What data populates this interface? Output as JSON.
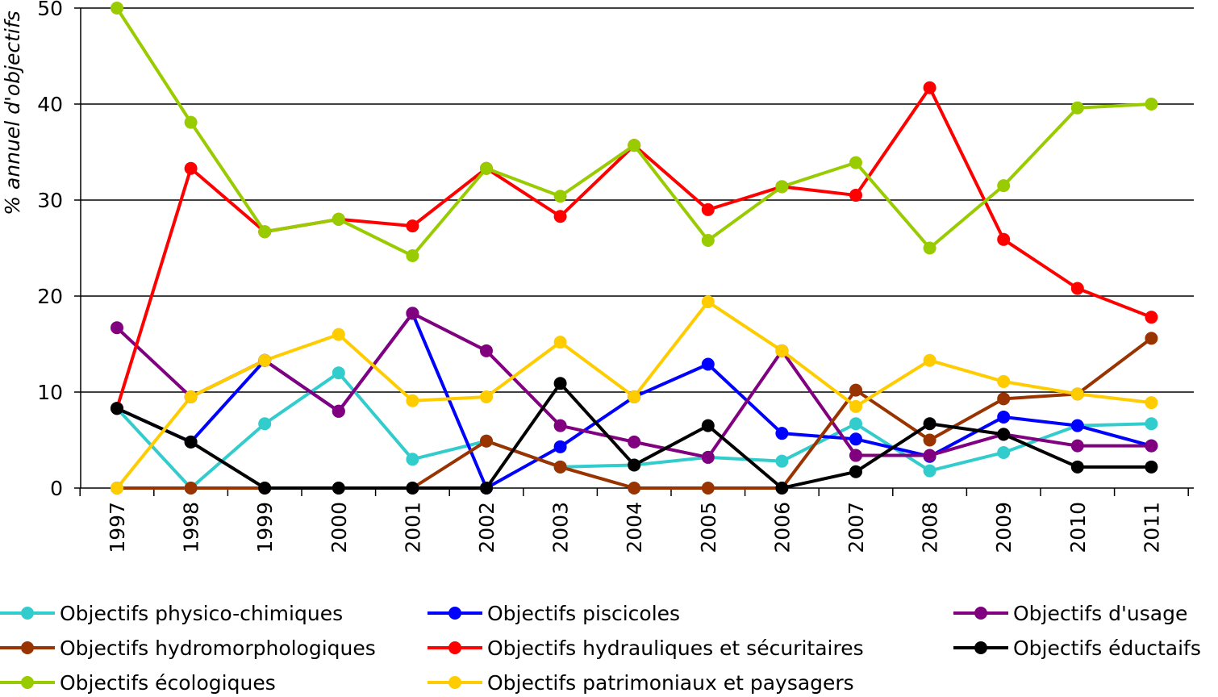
{
  "chart_data": {
    "type": "line",
    "ylabel": "% annuel d'objectifs",
    "xlabel": "",
    "ylim": [
      0,
      50
    ],
    "yticks": [
      0,
      10,
      20,
      30,
      40,
      50
    ],
    "grid": true,
    "legend_position": "bottom",
    "categories": [
      "1997",
      "1998",
      "1999",
      "2000",
      "2001",
      "2002",
      "2003",
      "2004",
      "2005",
      "2006",
      "2007",
      "2008",
      "2009",
      "2010",
      "2011"
    ],
    "series": [
      {
        "name": "Objectifs physico-chimiques",
        "color": "#33CCCC",
        "values": [
          8.3,
          0,
          6.7,
          12.0,
          3.0,
          4.9,
          2.2,
          2.4,
          3.2,
          2.8,
          6.7,
          1.8,
          3.7,
          6.5,
          6.7
        ]
      },
      {
        "name": "Objectifs piscicoles",
        "color": "#0000FF",
        "values": [
          8.3,
          4.8,
          13.3,
          8.0,
          18.2,
          0,
          4.3,
          9.5,
          12.9,
          5.7,
          5.1,
          3.3,
          7.4,
          6.5,
          4.4
        ]
      },
      {
        "name": "Objectifs d'usage",
        "color": "#800080",
        "values": [
          16.7,
          9.5,
          13.3,
          8.0,
          18.2,
          14.3,
          6.5,
          4.8,
          3.2,
          14.3,
          3.4,
          3.4,
          5.6,
          4.4,
          4.4
        ]
      },
      {
        "name": "Objectifs hydromorphologiques",
        "color": "#993300",
        "values": [
          0,
          0,
          0,
          0,
          0,
          4.9,
          2.2,
          0,
          0,
          0,
          10.2,
          5.0,
          9.3,
          9.8,
          15.6
        ]
      },
      {
        "name": "Objectifs hydrauliques et sécuritaires",
        "color": "#FF0000",
        "values": [
          8.3,
          33.3,
          26.7,
          28.0,
          27.3,
          33.3,
          28.3,
          35.7,
          29.0,
          31.4,
          30.5,
          41.7,
          25.9,
          20.8,
          17.8
        ]
      },
      {
        "name": "Objectifs éductaifs",
        "color": "#000000",
        "values": [
          8.3,
          4.8,
          0,
          0,
          0,
          0,
          10.9,
          2.4,
          6.5,
          0,
          1.7,
          6.7,
          5.6,
          2.2,
          2.2
        ]
      },
      {
        "name": "Objectifs écologiques",
        "color": "#99CC00",
        "values": [
          50.0,
          38.1,
          26.7,
          28.0,
          24.2,
          33.3,
          30.4,
          35.7,
          25.8,
          31.4,
          33.9,
          25.0,
          31.5,
          39.6,
          40.0
        ]
      },
      {
        "name": "Objectifs patrimoniaux et paysagers",
        "color": "#FFCC00",
        "values": [
          0,
          9.5,
          13.3,
          16.0,
          9.1,
          9.5,
          15.2,
          9.5,
          19.4,
          14.3,
          8.5,
          13.3,
          11.1,
          9.8,
          8.9
        ]
      }
    ]
  }
}
